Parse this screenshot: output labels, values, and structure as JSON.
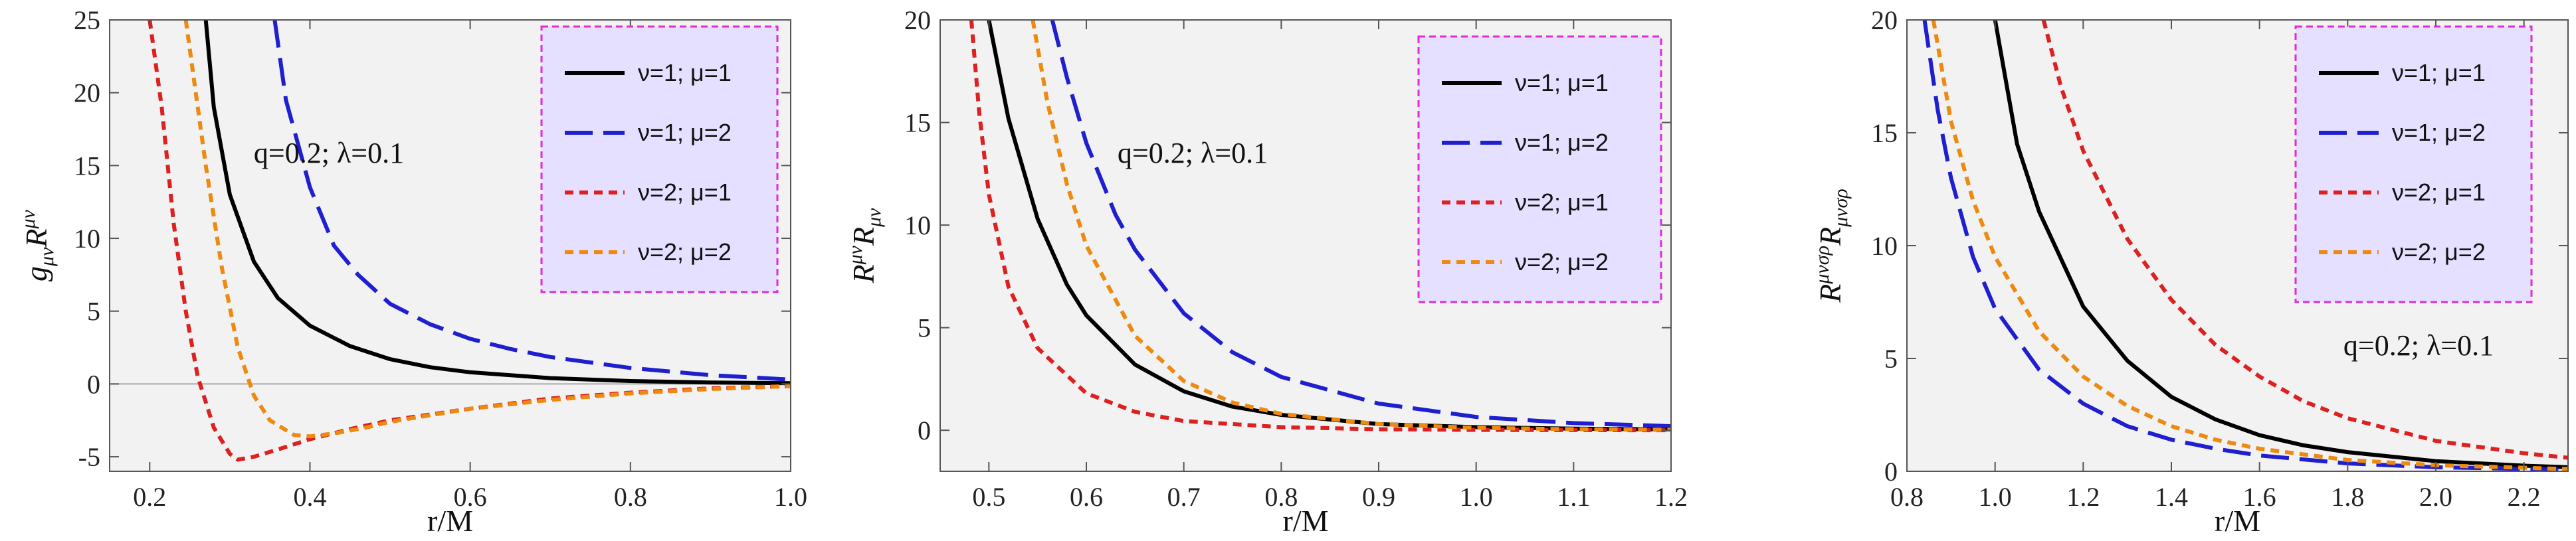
{
  "chart_data": [
    {
      "type": "line",
      "xlabel": "r/M",
      "ylabel": "g_{μν}R^{μν}",
      "ylabel_parts": [
        "g",
        "μν",
        "R",
        "μν"
      ],
      "xlim": [
        0.15,
        1.0
      ],
      "ylim": [
        -6,
        25
      ],
      "xticks": [
        0.2,
        0.4,
        0.6,
        0.8,
        1.0
      ],
      "xtick_labels": [
        "0.2",
        "0.4",
        "0.6",
        "0.8",
        "1.0"
      ],
      "yticks": [
        -5,
        0,
        5,
        10,
        15,
        20,
        25
      ],
      "ytick_labels": [
        "-5",
        "0",
        "5",
        "10",
        "15",
        "20",
        "25"
      ],
      "zero_line": true,
      "annotation": "q=0.2; λ=0.1",
      "legend_placement": "top-right",
      "series": [
        {
          "name": "ν=1; μ=1",
          "color": "#000000",
          "dash": "solid",
          "x": [
            0.27,
            0.28,
            0.3,
            0.33,
            0.36,
            0.4,
            0.45,
            0.5,
            0.55,
            0.6,
            0.7,
            0.8,
            0.9,
            1.0
          ],
          "y": [
            25,
            19,
            13,
            8.4,
            5.9,
            4.0,
            2.6,
            1.7,
            1.15,
            0.8,
            0.4,
            0.2,
            0.1,
            0.05
          ]
        },
        {
          "name": "ν=1; μ=2",
          "color": "#1f1fcf",
          "dash": "long",
          "x": [
            0.356,
            0.37,
            0.4,
            0.43,
            0.46,
            0.5,
            0.55,
            0.6,
            0.65,
            0.7,
            0.8,
            0.9,
            1.0
          ],
          "y": [
            25,
            19.5,
            13.5,
            9.5,
            7.5,
            5.5,
            4.1,
            3.1,
            2.4,
            1.85,
            1.1,
            0.6,
            0.3
          ]
        },
        {
          "name": "ν=2; μ=1",
          "color": "#dd2020",
          "dash": "short",
          "x": [
            0.2,
            0.215,
            0.23,
            0.245,
            0.26,
            0.28,
            0.3,
            0.31,
            0.33,
            0.36,
            0.4,
            0.45,
            0.5,
            0.6,
            0.7,
            0.8,
            0.9,
            1.0
          ],
          "y": [
            25,
            19,
            11,
            5,
            0.5,
            -3,
            -4.8,
            -5.2,
            -5,
            -4.5,
            -3.8,
            -3.1,
            -2.5,
            -1.7,
            -1.0,
            -0.6,
            -0.3,
            -0.15
          ]
        },
        {
          "name": "ν=2; μ=2",
          "color": "#ee8a10",
          "dash": "short",
          "x": [
            0.245,
            0.255,
            0.27,
            0.29,
            0.31,
            0.33,
            0.35,
            0.38,
            0.4,
            0.43,
            0.47,
            0.5,
            0.6,
            0.7,
            0.8,
            0.9,
            1.0
          ],
          "y": [
            25,
            21,
            15,
            8,
            2.5,
            -0.8,
            -2.5,
            -3.5,
            -3.6,
            -3.4,
            -3.0,
            -2.6,
            -1.7,
            -1.1,
            -0.65,
            -0.35,
            -0.15
          ]
        }
      ]
    },
    {
      "type": "line",
      "xlabel": "r/M",
      "ylabel": "R^{μν}R_{μν}",
      "ylabel_parts": [
        "R",
        "μν",
        "R",
        "μν"
      ],
      "xlim": [
        0.45,
        1.2
      ],
      "ylim": [
        -2,
        20
      ],
      "xticks": [
        0.5,
        0.6,
        0.7,
        0.8,
        0.9,
        1.0,
        1.1,
        1.2
      ],
      "xtick_labels": [
        "0.5",
        "0.6",
        "0.7",
        "0.8",
        "0.9",
        "1.0",
        "1.1",
        "1.2"
      ],
      "yticks": [
        0,
        5,
        10,
        15,
        20
      ],
      "ytick_labels": [
        "0",
        "5",
        "10",
        "15",
        "20"
      ],
      "zero_line": false,
      "annotation": "q=0.2; λ=0.1",
      "legend_placement": "top-right",
      "series": [
        {
          "name": "ν=1; μ=1",
          "color": "#000000",
          "dash": "solid",
          "x": [
            0.5,
            0.52,
            0.55,
            0.58,
            0.6,
            0.65,
            0.7,
            0.75,
            0.8,
            0.9,
            1.0,
            1.1,
            1.2
          ],
          "y": [
            20,
            15.2,
            10.3,
            7.1,
            5.6,
            3.2,
            1.9,
            1.15,
            0.75,
            0.3,
            0.15,
            0.08,
            0.04
          ]
        },
        {
          "name": "ν=1; μ=2",
          "color": "#1f1fcf",
          "dash": "long",
          "x": [
            0.565,
            0.58,
            0.6,
            0.63,
            0.65,
            0.7,
            0.75,
            0.8,
            0.9,
            1.0,
            1.1,
            1.2
          ],
          "y": [
            20,
            17.2,
            14.0,
            10.5,
            8.8,
            5.7,
            3.8,
            2.6,
            1.3,
            0.65,
            0.35,
            0.2
          ]
        },
        {
          "name": "ν=2; μ=1",
          "color": "#dd2020",
          "dash": "short",
          "x": [
            0.482,
            0.49,
            0.5,
            0.52,
            0.55,
            0.6,
            0.65,
            0.7,
            0.8,
            0.9,
            1.0,
            1.2
          ],
          "y": [
            20,
            15.5,
            11.5,
            7.0,
            4.0,
            1.8,
            0.9,
            0.45,
            0.15,
            0.05,
            0.02,
            0
          ]
        },
        {
          "name": "ν=2; μ=2",
          "color": "#ee8a10",
          "dash": "short",
          "x": [
            0.545,
            0.56,
            0.58,
            0.6,
            0.65,
            0.7,
            0.75,
            0.8,
            0.9,
            1.0,
            1.1,
            1.2
          ],
          "y": [
            20,
            16.0,
            12.0,
            9.0,
            4.6,
            2.4,
            1.35,
            0.8,
            0.3,
            0.12,
            0.05,
            0.02
          ]
        }
      ]
    },
    {
      "type": "line",
      "xlabel": "r/M",
      "ylabel": "R^{μνσρ}R_{μνσρ}",
      "ylabel_parts": [
        "R",
        "μνσρ",
        "R",
        "μνσρ"
      ],
      "xlim": [
        0.8,
        2.3
      ],
      "ylim": [
        0,
        20
      ],
      "xticks": [
        0.8,
        1.0,
        1.2,
        1.4,
        1.6,
        1.8,
        2.0,
        2.2
      ],
      "xtick_labels": [
        "0.8",
        "1.0",
        "1.2",
        "1.4",
        "1.6",
        "1.8",
        "2.0",
        "2.2"
      ],
      "yticks": [
        0,
        5,
        10,
        15,
        20
      ],
      "ytick_labels": [
        "0",
        "5",
        "10",
        "15",
        "20"
      ],
      "zero_line": false,
      "annotation": "q=0.2; λ=0.1",
      "legend_placement": "top-right",
      "series": [
        {
          "name": "ν=1; μ=1",
          "color": "#000000",
          "dash": "solid",
          "x": [
            1.0,
            1.05,
            1.1,
            1.2,
            1.3,
            1.4,
            1.5,
            1.6,
            1.7,
            1.8,
            2.0,
            2.2,
            2.3
          ],
          "y": [
            20,
            14.5,
            11.5,
            7.3,
            4.9,
            3.3,
            2.3,
            1.6,
            1.15,
            0.85,
            0.45,
            0.25,
            0.18
          ]
        },
        {
          "name": "ν=1; μ=2",
          "color": "#1f1fcf",
          "dash": "long",
          "x": [
            0.84,
            0.87,
            0.9,
            0.95,
            1.0,
            1.1,
            1.2,
            1.3,
            1.4,
            1.5,
            1.6,
            1.8,
            2.0,
            2.3
          ],
          "y": [
            20,
            16,
            13,
            9.5,
            7.2,
            4.5,
            3.0,
            2.0,
            1.4,
            1.0,
            0.7,
            0.35,
            0.18,
            0.07
          ]
        },
        {
          "name": "ν=2; μ=1",
          "color": "#dd2020",
          "dash": "short",
          "x": [
            1.11,
            1.15,
            1.2,
            1.3,
            1.4,
            1.5,
            1.6,
            1.7,
            1.8,
            2.0,
            2.2,
            2.3
          ],
          "y": [
            20,
            17,
            14.2,
            10.3,
            7.6,
            5.6,
            4.2,
            3.1,
            2.35,
            1.35,
            0.8,
            0.6
          ]
        },
        {
          "name": "ν=2; μ=2",
          "color": "#ee8a10",
          "dash": "short",
          "x": [
            0.86,
            0.9,
            0.95,
            1.0,
            1.1,
            1.2,
            1.3,
            1.4,
            1.5,
            1.6,
            1.8,
            2.0,
            2.3
          ],
          "y": [
            20,
            15.5,
            12.0,
            9.5,
            6.2,
            4.2,
            2.9,
            2.0,
            1.4,
            1.0,
            0.5,
            0.27,
            0.1
          ]
        }
      ]
    }
  ],
  "style": {
    "plot_background": "#f2f2f2",
    "legend_background": "#e5e0ff",
    "legend_border": "#e02bd6",
    "frame_color": "#555555",
    "zero_line_color": "#aaaaaa"
  }
}
